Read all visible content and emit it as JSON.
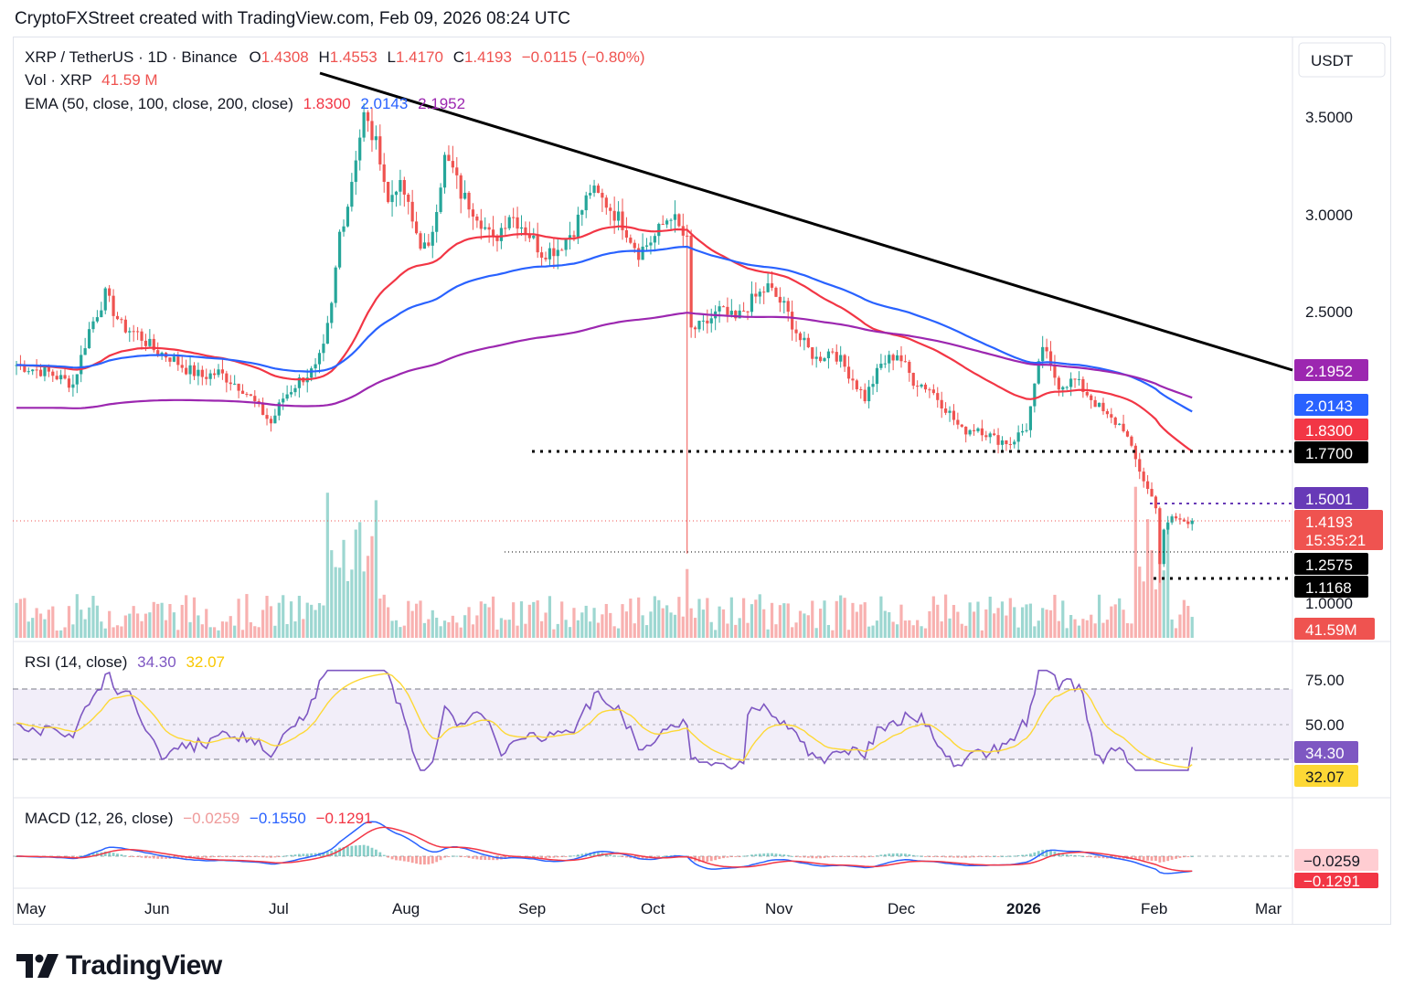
{
  "header": {
    "caption": "CryptoFXStreet created with TradingView.com, Feb 09, 2026 08:24 UTC"
  },
  "legend": {
    "symbol": "XRP / TetherUS · 1D · Binance",
    "o_label": "O",
    "o": "1.4308",
    "h_label": "H",
    "h": "1.4553",
    "l_label": "L",
    "l": "1.4170",
    "c_label": "C",
    "c": "1.4193",
    "change": "−0.0115 (−0.80%)",
    "vol_label": "Vol · XRP",
    "vol_value": "41.59 M",
    "ema_label": "EMA (50, close, 100, close, 200, close)",
    "ema50": "1.8300",
    "ema100": "2.0143",
    "ema200": "2.1952",
    "rsi_label": "RSI (14, close)",
    "rsi_value": "34.30",
    "rsi_ma": "32.07",
    "macd_label": "MACD (12, 26, close)",
    "macd_hist": "−0.0259",
    "macd_line": "−0.1550",
    "macd_signal": "−0.1291"
  },
  "price_axis": {
    "currency": "USDT",
    "ticks": [
      "3.5000",
      "3.0000",
      "2.5000",
      "1.0000"
    ],
    "rsi_ticks": [
      "75.00",
      "50.00"
    ]
  },
  "badges": {
    "ema200": "2.1952",
    "ema100": "2.0143",
    "ema50": "1.8300",
    "s1": "1.7700",
    "s2": "1.5001",
    "last": "1.4193",
    "countdown": "15:35:21",
    "s3": "1.2575",
    "s4": "1.1168",
    "volume": "41.59M",
    "rsi": "34.30",
    "rsi_ma": "32.07",
    "macd_hist": "−0.0259",
    "macd_signal": "−0.1291"
  },
  "colors": {
    "up": "#26a69a",
    "down": "#ef5350",
    "ema50": "#f23645",
    "ema100": "#2962ff",
    "ema200": "#9c27b0",
    "rsi": "#7e57c2",
    "rsi_ma": "#fdd835",
    "trend": "#000000"
  },
  "brand": {
    "name": "TradingView"
  },
  "chart_data": {
    "type": "candlestick",
    "title": "XRP / TetherUS · 1D · Binance",
    "x_labels": [
      "May",
      "Jun",
      "Jul",
      "Aug",
      "Sep",
      "Oct",
      "Nov",
      "Dec",
      "2026",
      "Feb",
      "Mar"
    ],
    "y_ticks": [
      3.5,
      3.0,
      2.5,
      1.0
    ],
    "ema_series": [
      {
        "name": "EMA 50",
        "points": [
          [
            "May",
            2.2
          ],
          [
            "Jun",
            2.22
          ],
          [
            "Jul",
            2.2
          ],
          [
            "Aug",
            2.85
          ],
          [
            "Sep",
            2.9
          ],
          [
            "Oct",
            2.8
          ],
          [
            "Nov",
            2.55
          ],
          [
            "Dec",
            2.1
          ],
          [
            "2026",
            2.02
          ],
          [
            "Feb",
            1.83
          ]
        ]
      },
      {
        "name": "EMA 100",
        "points": [
          [
            "May",
            2.2
          ],
          [
            "Jun",
            2.25
          ],
          [
            "Jul",
            2.2
          ],
          [
            "Aug",
            2.6
          ],
          [
            "Sep",
            2.78
          ],
          [
            "Oct",
            2.85
          ],
          [
            "Nov",
            2.58
          ],
          [
            "Dec",
            2.3
          ],
          [
            "2026",
            2.2
          ],
          [
            "Feb",
            2.01
          ]
        ]
      },
      {
        "name": "EMA 200",
        "points": [
          [
            "May",
            1.98
          ],
          [
            "Jun",
            2.04
          ],
          [
            "Jul",
            2.08
          ],
          [
            "Aug",
            2.42
          ],
          [
            "Sep",
            2.59
          ],
          [
            "Oct",
            2.66
          ],
          [
            "Nov",
            2.52
          ],
          [
            "Dec",
            2.42
          ],
          [
            "2026",
            2.34
          ],
          [
            "Feb",
            2.2
          ]
        ]
      }
    ],
    "levels": [
      1.77,
      1.5001,
      1.4193,
      1.2575,
      1.1168
    ],
    "rsi": {
      "upper": 75,
      "mid": 50,
      "lower": 25,
      "last": 34.3,
      "ma": 32.07
    },
    "macd": {
      "hist": -0.0259,
      "macd": -0.155,
      "signal": -0.1291
    },
    "volume_last": "41.59M"
  }
}
